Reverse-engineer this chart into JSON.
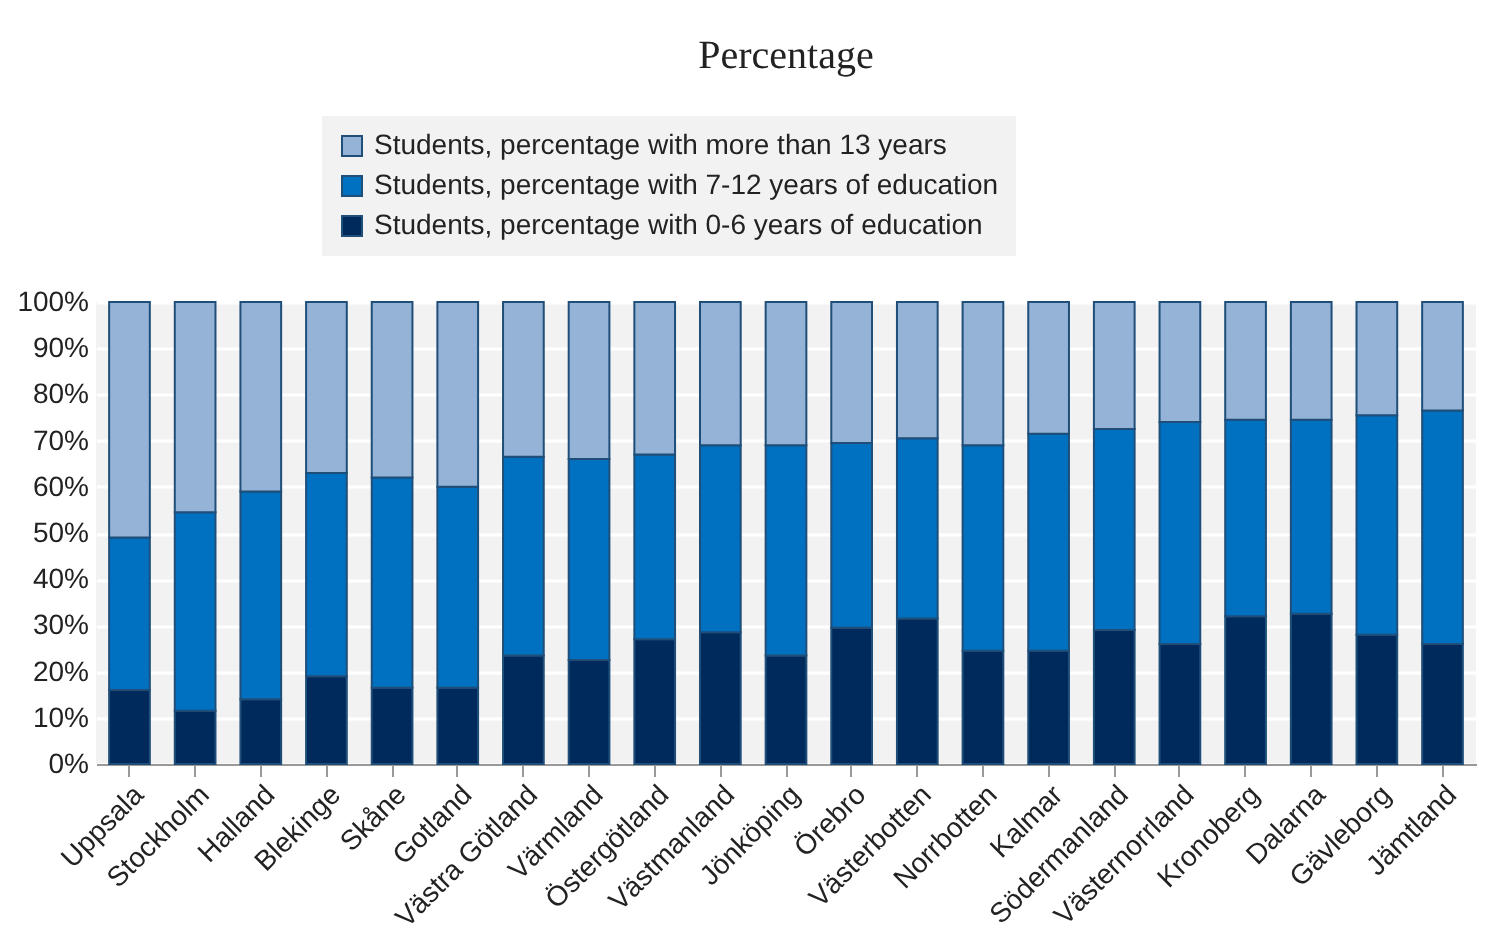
{
  "chart_data": {
    "type": "bar",
    "title": "Percentage",
    "stacked": true,
    "legend": "top",
    "grid": "y",
    "categories": [
      "Uppsala",
      "Stockholm",
      "Halland",
      "Blekinge",
      "Skåne",
      "Gotland",
      "Västra Götland",
      "Värmland",
      "Östergötland",
      "Västmanland",
      "Jönköping",
      "Örebro",
      "Västerbotten",
      "Norrbotten",
      "Kalmar",
      "Södermanland",
      "Västernorrland",
      "Kronoberg",
      "Dalarna",
      "Gävleborg",
      "Jämtland"
    ],
    "series": [
      {
        "name": "Students, percentage with 0-6 years of education",
        "color": "#002a5c",
        "values": [
          16,
          11.5,
          14,
          19,
          16.5,
          16.5,
          23.5,
          22.5,
          27,
          28.5,
          23.5,
          29.5,
          31.5,
          24.5,
          24.5,
          29,
          26,
          32,
          32.5,
          28,
          26
        ]
      },
      {
        "name": "Students, percentage with 7-12 years of education",
        "color": "#0070c0",
        "values": [
          33,
          43,
          45,
          44,
          45.5,
          43.5,
          43,
          43.5,
          40,
          40.5,
          45.5,
          40,
          39,
          44.5,
          47,
          43.5,
          48,
          42.5,
          42,
          47.5,
          50.5
        ]
      },
      {
        "name": "Students, percentage with more than 13 years",
        "color": "#95b3d7",
        "values": [
          51,
          45.5,
          41,
          37,
          38,
          40,
          33.5,
          34,
          33,
          31,
          31,
          30.5,
          29.5,
          31,
          28.5,
          27.5,
          26,
          25.5,
          25.5,
          24.5,
          23.5
        ]
      }
    ],
    "ylim": [
      0,
      100
    ],
    "yticks": [
      {
        "value": 0,
        "label": "0%"
      },
      {
        "value": 10,
        "label": "10%"
      },
      {
        "value": 20,
        "label": "20%"
      },
      {
        "value": 30,
        "label": "30%"
      },
      {
        "value": 40,
        "label": "40%"
      },
      {
        "value": 50,
        "label": "50%"
      },
      {
        "value": 60,
        "label": "60%"
      },
      {
        "value": 70,
        "label": "70%"
      },
      {
        "value": 80,
        "label": "80%"
      },
      {
        "value": 90,
        "label": "90%"
      },
      {
        "value": 100,
        "label": "100%"
      }
    ]
  }
}
